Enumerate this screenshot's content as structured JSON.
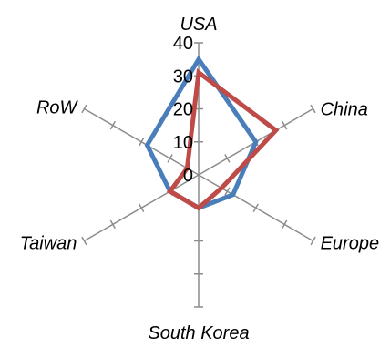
{
  "chart_data": {
    "type": "radar",
    "categories": [
      "USA",
      "China",
      "Europe",
      "South Korea",
      "Taiwan",
      "RoW"
    ],
    "radial_ticks": [
      "0",
      "10",
      "20",
      "30",
      "40"
    ],
    "rmax": 40,
    "series": [
      {
        "values": [
          35,
          20,
          12,
          10,
          10,
          18
        ],
        "color": "#4A7EBB"
      },
      {
        "values": [
          31,
          27,
          8,
          10,
          10,
          4
        ],
        "color": "#BE4B48"
      }
    ],
    "grid": false,
    "legend": "none"
  }
}
